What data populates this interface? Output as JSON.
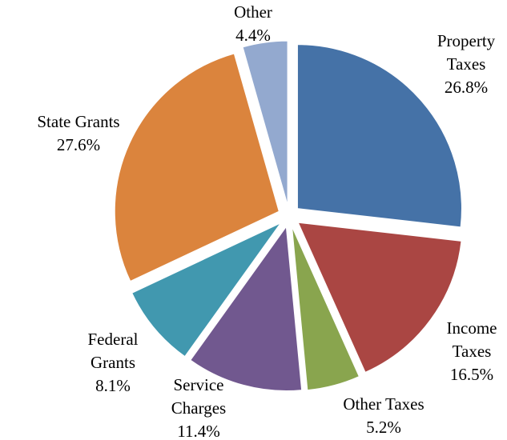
{
  "chart_data": {
    "type": "pie",
    "title": "",
    "series": [
      {
        "values": [
          26.8,
          16.5,
          5.2,
          11.4,
          8.1,
          27.6,
          4.4
        ],
        "labels": [
          [
            "Property",
            "Taxes",
            "26.8%"
          ],
          [
            "Income",
            "Taxes",
            "16.5%"
          ],
          [
            "Other Taxes",
            "5.2%"
          ],
          [
            "Service",
            "Charges",
            "11.4%"
          ],
          [
            "Federal",
            "Grants",
            "8.1%"
          ],
          [
            "State Grants",
            "27.6%"
          ],
          [
            "Other",
            "4.4%"
          ]
        ]
      }
    ],
    "categories": [
      "Property Taxes",
      "Income Taxes",
      "Other Taxes",
      "Service Charges",
      "Federal Grants",
      "State Grants",
      "Other"
    ],
    "colors": [
      "#4572A7",
      "#AA4643",
      "#89A54E",
      "#71588F",
      "#4198AF",
      "#DB843D",
      "#93A9CF"
    ],
    "slices_exploded": true,
    "legend": "none"
  }
}
